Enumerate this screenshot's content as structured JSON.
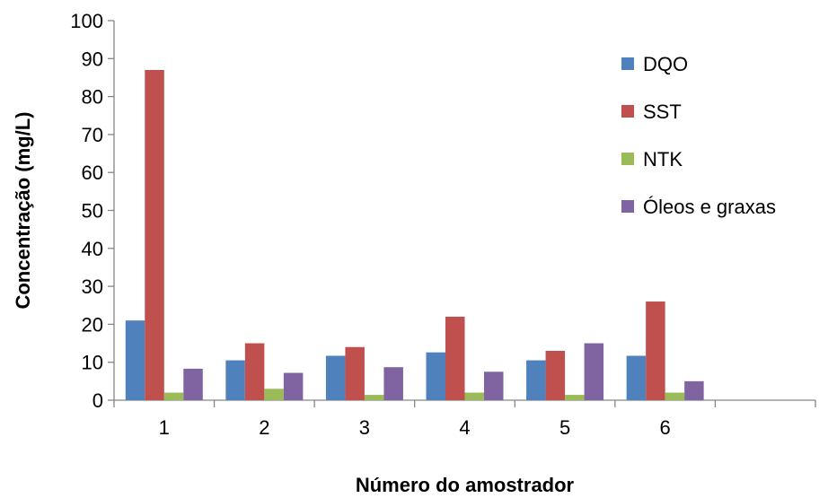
{
  "chart_data": {
    "type": "bar",
    "xlabel": "Número do amostrador",
    "ylabel": "Concentração (mg/L)",
    "ylim": [
      0,
      100
    ],
    "yticks": [
      0,
      10,
      20,
      30,
      40,
      50,
      60,
      70,
      80,
      90,
      100
    ],
    "categories": [
      "1",
      "2",
      "3",
      "4",
      "5",
      "6",
      ""
    ],
    "series": [
      {
        "name": "DQO",
        "color": "#4F81BD",
        "values": [
          21,
          10.5,
          11.7,
          12.6,
          10.5,
          11.7,
          null
        ]
      },
      {
        "name": "SST",
        "color": "#C0504D",
        "values": [
          87,
          15,
          14,
          22,
          13,
          26,
          null
        ]
      },
      {
        "name": "NTK",
        "color": "#9BBB59",
        "values": [
          2,
          3,
          1.4,
          2,
          1.4,
          2,
          null
        ]
      },
      {
        "name": "Óleos e graxas",
        "color": "#8064A2",
        "values": [
          8.3,
          7.2,
          8.7,
          7.5,
          15,
          5,
          null
        ]
      }
    ],
    "legend_position": "right",
    "grid": false
  }
}
